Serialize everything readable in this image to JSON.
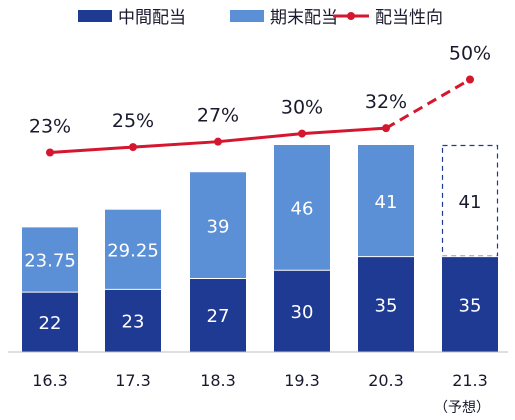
{
  "chart_data": {
    "type": "bar",
    "stacked": true,
    "categories": [
      "16.3",
      "17.3",
      "18.3",
      "19.3",
      "20.3",
      "21.3"
    ],
    "category_notes": [
      "",
      "",
      "",
      "",
      "",
      "（予想）"
    ],
    "series": [
      {
        "name": "中間配当",
        "values": [
          22,
          23,
          27,
          30,
          35,
          35
        ],
        "labels": [
          "22",
          "23",
          "27",
          "30",
          "35",
          "35"
        ],
        "color": "#1F3A93"
      },
      {
        "name": "期末配当",
        "values": [
          23.75,
          29.25,
          39,
          46,
          41,
          41
        ],
        "labels": [
          "23.75",
          "29.25",
          "39",
          "46",
          "41",
          "41"
        ],
        "color": "#5B8FD6"
      }
    ],
    "line_series": {
      "name": "配当性向",
      "values": [
        23,
        25,
        27,
        30,
        32,
        50
      ],
      "labels": [
        "23%",
        "25%",
        "27%",
        "30%",
        "32%",
        "50%"
      ],
      "color": "#D4162E",
      "forecast_from_index": 4
    },
    "forecast_index": 5,
    "legend_position": "top",
    "grid": false
  }
}
